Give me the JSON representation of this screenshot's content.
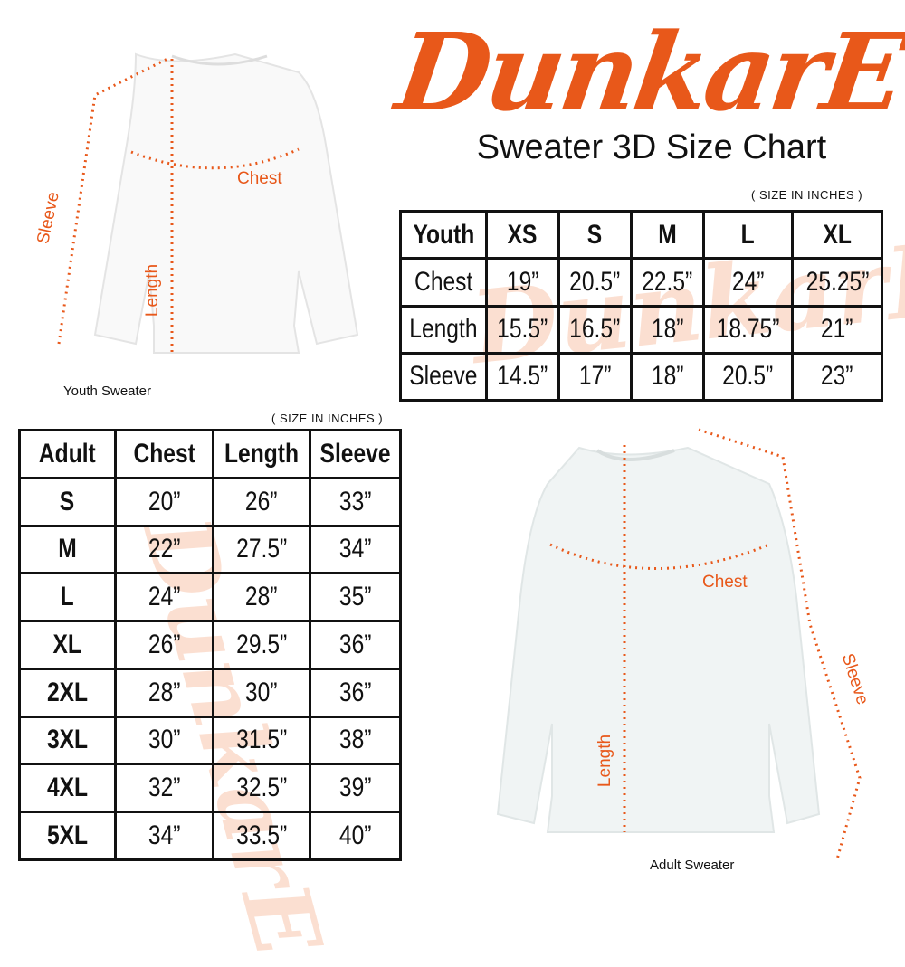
{
  "brand": {
    "logo_text": "DunkarE",
    "color": "#e8581a"
  },
  "title": "Sweater 3D Size Chart",
  "youth": {
    "units_note": "( SIZE IN INCHES )",
    "caption": "Youth Sweater",
    "labels": {
      "chest": "Chest",
      "length": "Length",
      "sleeve": "Sleeve"
    },
    "header": [
      "Youth",
      "XS",
      "S",
      "M",
      "L",
      "XL"
    ],
    "rows": [
      [
        "Chest",
        "19”",
        "20.5”",
        "22.5”",
        "24”",
        "25.25”"
      ],
      [
        "Length",
        "15.5”",
        "16.5”",
        "18”",
        "18.75”",
        "21”"
      ],
      [
        "Sleeve",
        "14.5”",
        "17”",
        "18”",
        "20.5”",
        "23”"
      ]
    ]
  },
  "adult": {
    "units_note": "( SIZE IN INCHES )",
    "caption": "Adult Sweater",
    "labels": {
      "chest": "Chest",
      "length": "Length",
      "sleeve": "Sleeve"
    },
    "header": [
      "Adult",
      "Chest",
      "Length",
      "Sleeve"
    ],
    "rows": [
      [
        "S",
        "20”",
        "26”",
        "33”"
      ],
      [
        "M",
        "22”",
        "27.5”",
        "34”"
      ],
      [
        "L",
        "24”",
        "28”",
        "35”"
      ],
      [
        "XL",
        "26”",
        "29.5”",
        "36”"
      ],
      [
        "2XL",
        "28”",
        "30”",
        "36”"
      ],
      [
        "3XL",
        "30”",
        "31.5”",
        "38”"
      ],
      [
        "4XL",
        "32”",
        "32.5”",
        "39”"
      ],
      [
        "5XL",
        "34”",
        "33.5”",
        "40”"
      ]
    ]
  }
}
